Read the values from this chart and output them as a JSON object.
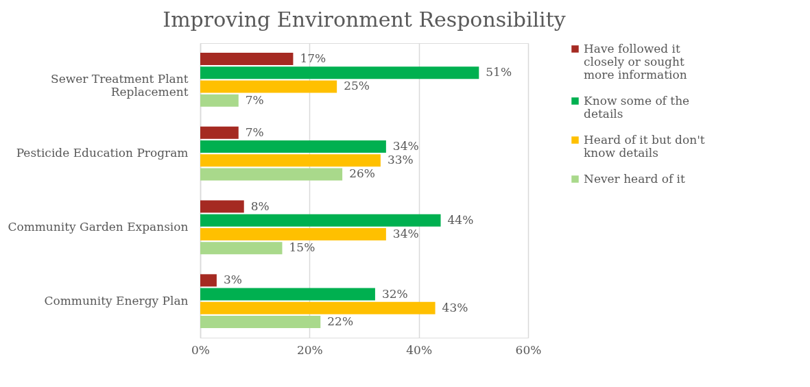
{
  "chart_data": {
    "type": "bar",
    "orientation": "horizontal",
    "title": "Improving Environment Responsibility",
    "categories": [
      "Sewer Treatment Plant Replacement",
      "Pesticide Education Program",
      "Community Garden Expansion",
      "Community Energy Plan"
    ],
    "series": [
      {
        "name": "Have followed it closely or sought more information",
        "color": "#a52a22",
        "values": [
          17,
          7,
          8,
          3
        ],
        "value_labels": [
          "17%",
          "7%",
          "8%",
          "3%"
        ]
      },
      {
        "name": "Know some of the details",
        "color": "#00b050",
        "values": [
          51,
          34,
          44,
          32
        ],
        "value_labels": [
          "51%",
          "34%",
          "44%",
          "32%"
        ]
      },
      {
        "name": "Heard of it but don't know details",
        "color": "#ffc000",
        "values": [
          25,
          33,
          34,
          43
        ],
        "value_labels": [
          "25%",
          "33%",
          "34%",
          "43%"
        ]
      },
      {
        "name": "Never heard of it",
        "color": "#a9d98b",
        "values": [
          7,
          26,
          15,
          22
        ],
        "value_labels": [
          "7%",
          "26%",
          "15%",
          "22%"
        ]
      }
    ],
    "xlim": [
      0,
      60
    ],
    "xticks": [
      {
        "value": 0,
        "label": "0%"
      },
      {
        "value": 20,
        "label": "20%"
      },
      {
        "value": 40,
        "label": "40%"
      },
      {
        "value": 60,
        "label": "60%"
      }
    ],
    "grid": "x",
    "legend": "right"
  }
}
